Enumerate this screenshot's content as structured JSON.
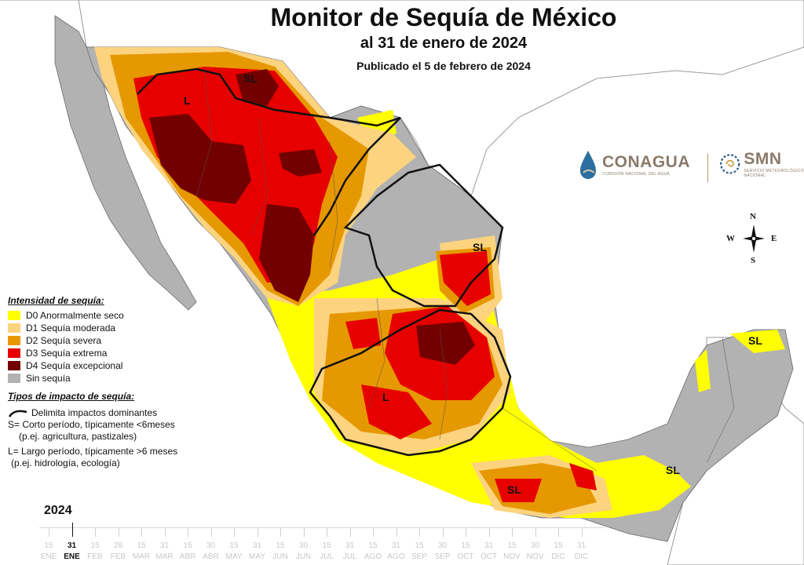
{
  "header": {
    "title": "Monitor de Sequía de México",
    "subtitle": "al 31 de enero de 2024",
    "published": "Publicado el 5 de febrero de 2024"
  },
  "legend": {
    "heading": "Intensidad de sequía:",
    "items": [
      {
        "label": "D0 Anormalmente seco",
        "color": "#ffff00"
      },
      {
        "label": "D1 Sequía moderada",
        "color": "#fcd37f"
      },
      {
        "label": "D2 Sequía severa",
        "color": "#e69800"
      },
      {
        "label": "D3 Sequía extrema",
        "color": "#e60000"
      },
      {
        "label": "D4 Sequía excepcional",
        "color": "#730000"
      },
      {
        "label": "Sin sequía",
        "color": "#b2b2b2"
      }
    ]
  },
  "impact": {
    "heading": "Tipos de impacto de sequía:",
    "line_label": "Delimita impactos dominantes",
    "s_label": "S= Corto período, típicamente <6meses",
    "s_example": "(p.ej. agricultura, pastizales)",
    "l_label": "L= Largo período, típicamente >6 meses",
    "l_example": "(p.ej. hidrología, ecología)"
  },
  "map_labels": [
    "SL",
    "L",
    "SL",
    "L",
    "SL",
    "SL",
    "SL"
  ],
  "logos": {
    "conagua_name": "CONAGUA",
    "conagua_sub": "COMISIÓN NACIONAL DEL AGUA",
    "smn_name": "SMN",
    "smn_sub": "SERVICIO METEOROLÓGICO NACIONAL"
  },
  "compass": {
    "n": "N",
    "s": "S",
    "e": "E",
    "w": "W"
  },
  "timeline": {
    "year": "2024",
    "days": [
      "15",
      "31",
      "15",
      "28",
      "15",
      "31",
      "15",
      "30",
      "15",
      "31",
      "15",
      "30",
      "15",
      "31",
      "15",
      "31",
      "15",
      "30",
      "15",
      "31",
      "15",
      "30",
      "15",
      "31"
    ],
    "months": [
      "ENE",
      "ENE",
      "FEB",
      "FEB",
      "MAR",
      "MAR",
      "ABR",
      "ABR",
      "MAY",
      "MAY",
      "JUN",
      "JUN",
      "JUL",
      "JUL",
      "AGO",
      "AGO",
      "SEP",
      "SEP",
      "OCT",
      "OCT",
      "NOV",
      "NOV",
      "DIC",
      "DIC"
    ],
    "active_index": 1
  }
}
